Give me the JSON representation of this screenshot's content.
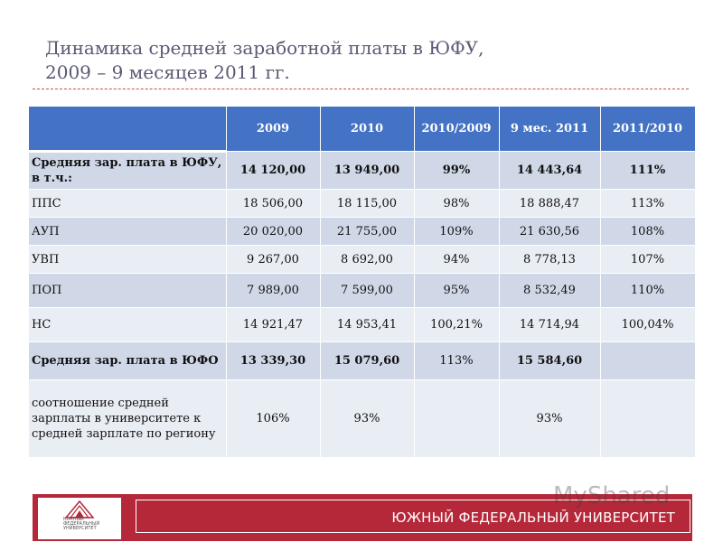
{
  "title": {
    "line1": "Динамика средней заработной платы в ЮФУ,",
    "line2": "2009 – 9 месяцев 2011 гг."
  },
  "table": {
    "headers": [
      "",
      "2009",
      "2010",
      "2010/2009",
      "9 мес. 2011",
      "2011/2010"
    ],
    "rows": [
      {
        "label": "Средняя зар. плата в ЮФУ, в т.ч.:",
        "cells": [
          "14 120,00",
          "13 949,00",
          "99%",
          "14 443,64",
          "111%"
        ]
      },
      {
        "label": "ППС",
        "cells": [
          "18 506,00",
          "18 115,00",
          "98%",
          "18 888,47",
          "113%"
        ]
      },
      {
        "label": "АУП",
        "cells": [
          "20 020,00",
          "21 755,00",
          "109%",
          "21 630,56",
          "108%"
        ]
      },
      {
        "label": "УВП",
        "cells": [
          "9 267,00",
          "8 692,00",
          "94%",
          "8 778,13",
          "107%"
        ]
      },
      {
        "label": "ПОП",
        "cells": [
          "7 989,00",
          "7 599,00",
          "95%",
          "8 532,49",
          "110%"
        ]
      },
      {
        "label": "НС",
        "cells": [
          "14 921,47",
          "14 953,41",
          "100,21%",
          "14 714,94",
          "100,04%"
        ]
      },
      {
        "label": "Средняя зар. плата в ЮФО",
        "cells": [
          "13 339,30",
          "15 079,60",
          "113%",
          "15 584,60",
          ""
        ]
      },
      {
        "label": "соотношение средней зарплаты в университете к средней зарплате по региону",
        "cells": [
          "106%",
          "93%",
          "",
          "93%",
          ""
        ]
      }
    ]
  },
  "footer": {
    "university": "ЮЖНЫЙ ФЕДЕРАЛЬНЫЙ УНИВЕРСИТЕТ",
    "logo_text": "ЮЖНЫЙ ФЕДЕРАЛЬНЫЙ УНИВЕРСИТЕТ",
    "watermark": "MyShared"
  },
  "colors": {
    "header": "#4472c4",
    "row_dark": "#d0d8e8",
    "row_light": "#e9edf4",
    "footer": "#b5283a"
  }
}
